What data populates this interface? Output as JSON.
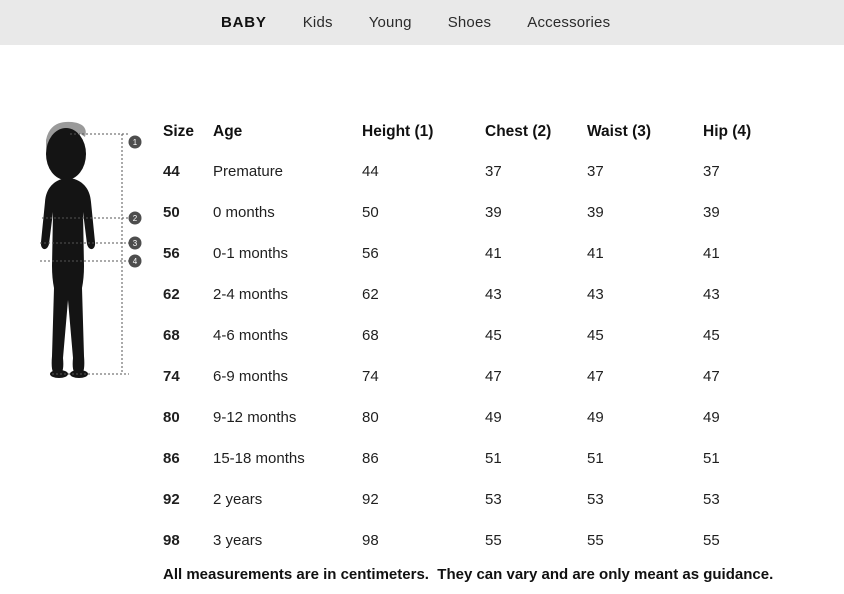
{
  "nav": {
    "items": [
      {
        "label": "BABY",
        "active": true
      },
      {
        "label": "Kids",
        "active": false
      },
      {
        "label": "Young",
        "active": false
      },
      {
        "label": "Shoes",
        "active": false
      },
      {
        "label": "Accessories",
        "active": false
      }
    ]
  },
  "figure": {
    "description": "baby-silhouette-with-measurement-lines",
    "markers": [
      "1",
      "2",
      "3",
      "4"
    ]
  },
  "table": {
    "keys": [
      "size",
      "age",
      "height",
      "chest",
      "waist",
      "hip"
    ],
    "headers": [
      "Size",
      "Age",
      "Height (1)",
      "Chest (2)",
      "Waist (3)",
      "Hip (4)"
    ],
    "rows": [
      [
        "44",
        "Premature",
        "44",
        "37",
        "37",
        "37"
      ],
      [
        "50",
        "0 months",
        "50",
        "39",
        "39",
        "39"
      ],
      [
        "56",
        "0-1 months",
        "56",
        "41",
        "41",
        "41"
      ],
      [
        "62",
        "2-4 months",
        "62",
        "43",
        "43",
        "43"
      ],
      [
        "68",
        "4-6 months",
        "68",
        "45",
        "45",
        "45"
      ],
      [
        "74",
        "6-9 months",
        "74",
        "47",
        "47",
        "47"
      ],
      [
        "80",
        "9-12 months",
        "80",
        "49",
        "49",
        "49"
      ],
      [
        "86",
        "15-18 months",
        "86",
        "51",
        "51",
        "51"
      ],
      [
        "92",
        "2 years",
        "92",
        "53",
        "53",
        "53"
      ],
      [
        "98",
        "3 years",
        "98",
        "55",
        "55",
        "55"
      ]
    ]
  },
  "footer": {
    "note": "All measurements are in centimeters.  They can vary and are only meant as guidance."
  },
  "colors": {
    "topbar_bg": "#e9e9e9",
    "text": "#1a1a1a",
    "marker_bg": "#4d4d4d",
    "silhouette": "#141414",
    "hair": "#9a9a9a"
  }
}
